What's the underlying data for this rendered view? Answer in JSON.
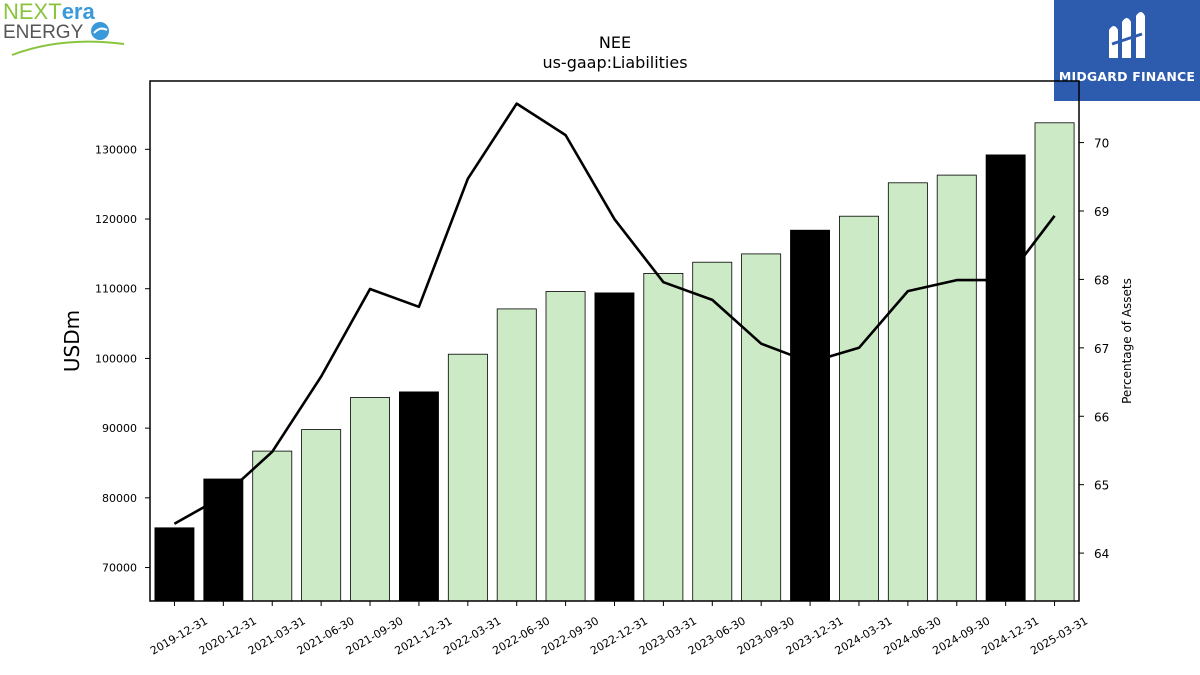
{
  "logos": {
    "nextera": {
      "next": "NEXT",
      "era": "era",
      "energy": "ENERGY"
    },
    "midgard": {
      "text": "MIDGARD FINANCE"
    }
  },
  "chart_data": {
    "type": "bar",
    "title": "NEE",
    "subtitle": "us-gaap:Liabilities",
    "ylabel": "USDm",
    "y2label": "Percentage of Assets",
    "ylim": [
      65200,
      139800
    ],
    "y2lim": [
      63.3,
      70.9
    ],
    "yticks": [
      70000,
      80000,
      90000,
      100000,
      110000,
      120000,
      130000
    ],
    "y2ticks": [
      64,
      65,
      66,
      67,
      68,
      69,
      70
    ],
    "categories": [
      "2019-12-31",
      "2020-12-31",
      "2021-03-31",
      "2021-06-30",
      "2021-09-30",
      "2021-12-31",
      "2022-03-31",
      "2022-06-30",
      "2022-09-30",
      "2022-12-31",
      "2023-03-31",
      "2023-06-30",
      "2023-09-30",
      "2023-12-31",
      "2024-03-31",
      "2024-06-30",
      "2024-09-30",
      "2024-12-31",
      "2025-03-31"
    ],
    "series": [
      {
        "type": "bar",
        "values": [
          75700,
          82700,
          86700,
          89800,
          94400,
          95200,
          100600,
          107100,
          109600,
          109400,
          112200,
          113800,
          115000,
          118400,
          120400,
          125200,
          126300,
          129200,
          133800
        ],
        "annual": [
          true,
          true,
          false,
          false,
          false,
          true,
          false,
          false,
          false,
          true,
          false,
          false,
          false,
          true,
          false,
          false,
          false,
          true,
          false
        ]
      },
      {
        "type": "line",
        "axis": "right",
        "values": [
          64.43,
          64.83,
          65.48,
          66.58,
          67.86,
          67.6,
          69.47,
          70.57,
          70.11,
          68.88,
          67.96,
          67.7,
          67.06,
          66.79,
          67.0,
          67.83,
          67.99,
          67.99,
          68.93
        ]
      }
    ],
    "colors": {
      "annual_bar": "#000000",
      "quarter_bar": "#cdeac6",
      "line": "#000000"
    },
    "grid": false
  }
}
